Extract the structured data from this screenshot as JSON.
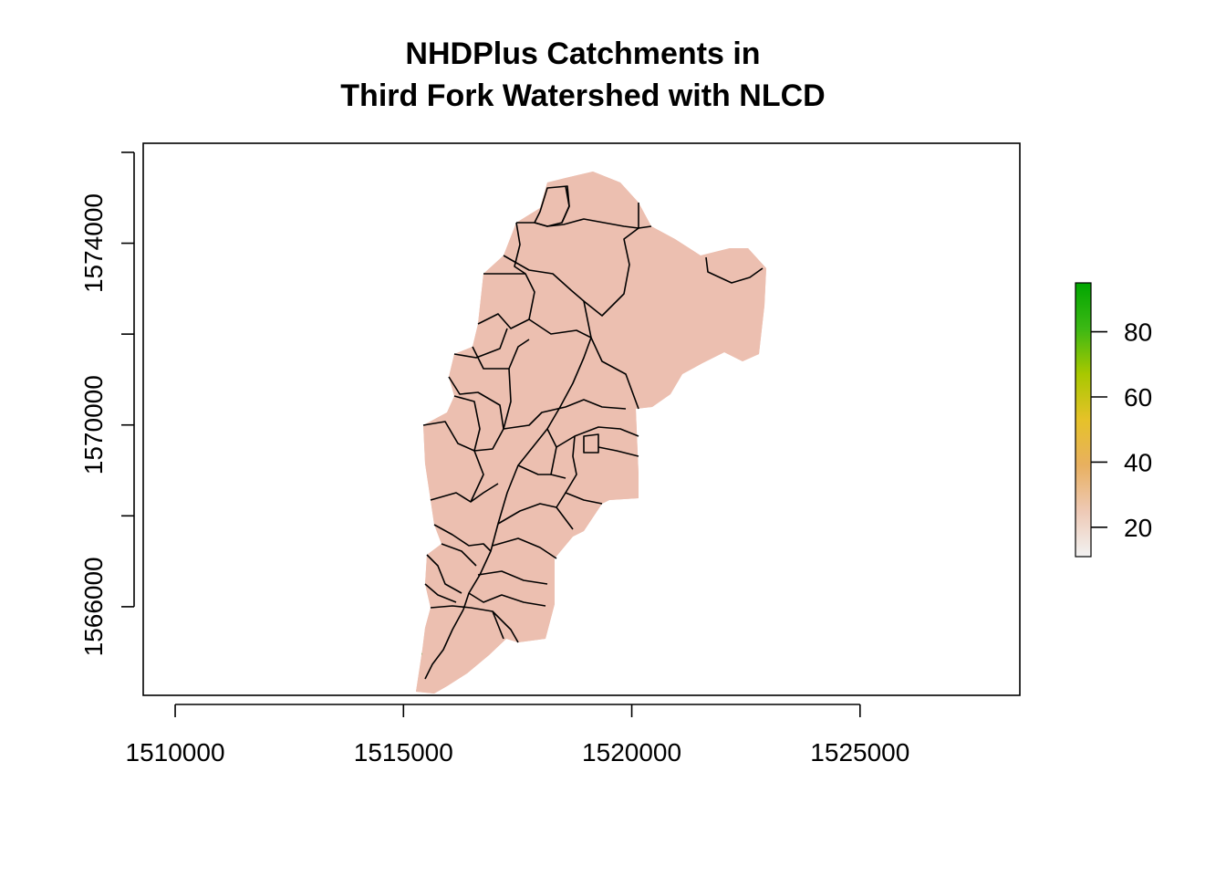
{
  "title": {
    "line1": "NHDPlus Catchments in",
    "line2": "Third Fork Watershed with NLCD"
  },
  "x_axis": {
    "ticks": [
      {
        "value": 1510000,
        "label": "1510000"
      },
      {
        "value": 1515000,
        "label": "1515000"
      },
      {
        "value": 1520000,
        "label": "1520000"
      },
      {
        "value": 1525000,
        "label": "1525000"
      }
    ],
    "range": [
      1509300,
      1528500
    ]
  },
  "y_axis": {
    "ticks": [
      {
        "value": 1566000,
        "label": "1566000"
      },
      {
        "value": 1568000,
        "label": ""
      },
      {
        "value": 1570000,
        "label": "1570000"
      },
      {
        "value": 1572000,
        "label": ""
      },
      {
        "value": 1574000,
        "label": "1574000"
      },
      {
        "value": 1576000,
        "label": ""
      }
    ],
    "range": [
      1564050,
      1576200
    ]
  },
  "legend": {
    "type": "color-bar",
    "placement": "right",
    "ticks": [
      {
        "value": 20,
        "label": "20"
      },
      {
        "value": 40,
        "label": "40"
      },
      {
        "value": 60,
        "label": "60"
      },
      {
        "value": 80,
        "label": "80"
      }
    ],
    "range": [
      11,
      95
    ],
    "colors": [
      "#f2f2f2",
      "#eec9b5",
      "#e8b060",
      "#e6c229",
      "#a8c800",
      "#3cb814",
      "#00a600"
    ]
  },
  "layers": {
    "raster_base_color": "#ecbfb0",
    "developed_color": "#e2b352",
    "forest_color": "#13a60e",
    "boundary_color": "#000000"
  }
}
